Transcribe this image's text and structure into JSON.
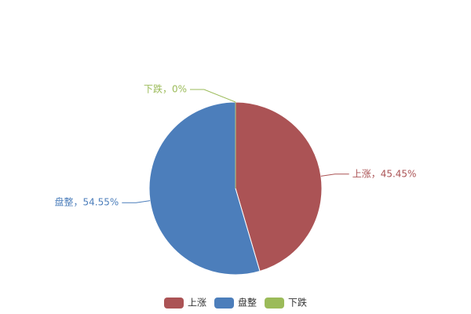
{
  "chart_data": {
    "type": "pie",
    "categories": [
      "上涨",
      "盘整",
      "下跌"
    ],
    "values": [
      45.45,
      54.55,
      0
    ],
    "value_labels": [
      "上涨，45.45%",
      "盘整，54.55%",
      "下跌，0%"
    ],
    "colors": [
      "#ab5355",
      "#4c7ebb",
      "#9bbb59"
    ],
    "legend": "bottom"
  }
}
